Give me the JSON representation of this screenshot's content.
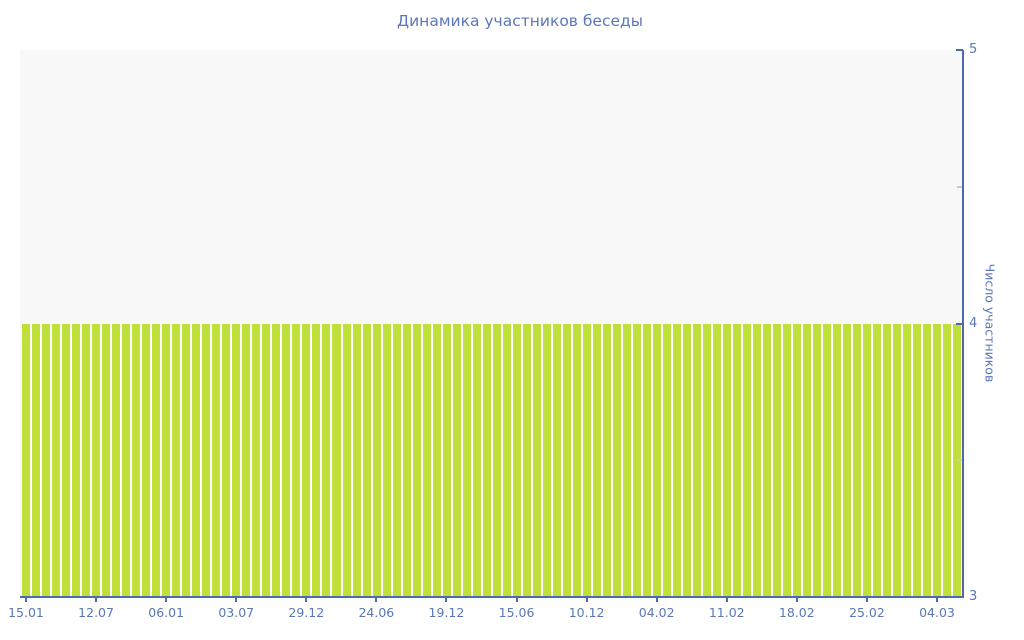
{
  "title": "Динамика участников беседы",
  "y_axis": {
    "title": "Число участников",
    "min": 3,
    "max": 5,
    "major_ticks": [
      {
        "label": "5",
        "value": 5
      },
      {
        "label": "4",
        "value": 4
      },
      {
        "label": "3",
        "value": 3
      }
    ],
    "minor_tick_values": [
      4.5,
      3.5
    ]
  },
  "x_axis": {
    "tick_labels": [
      "15.01",
      "12.07",
      "06.01",
      "03.07",
      "29.12",
      "24.06",
      "19.12",
      "15.06",
      "10.12",
      "04.02",
      "11.02",
      "18.02",
      "25.02",
      "04.03"
    ],
    "label_every_n_bars": 7
  },
  "colors": {
    "bar": "#bfdf3a",
    "bar_border": "#ffffff",
    "axis_line": "#4d6aac",
    "text": "#5b77b8",
    "plot_background": "#f8f8f8",
    "minor_tick": "#c9c9c9",
    "page_background": "#ffffff"
  },
  "chart_data": {
    "type": "bar",
    "title": "Динамика участников беседы",
    "xlabel": "",
    "ylabel": "Число участников",
    "ylim": [
      3,
      5
    ],
    "y_ticks": [
      5,
      4,
      3
    ],
    "y_minor_ticks": [
      4.5,
      3.5
    ],
    "grid": false,
    "legend": "none",
    "bar_count": 94,
    "categories": [
      "15.01",
      "12.07",
      "06.01",
      "03.07",
      "29.12",
      "24.06",
      "19.12",
      "15.06",
      "10.12",
      "04.02",
      "11.02",
      "18.02",
      "25.02",
      "04.03"
    ],
    "category_bar_indices": [
      0,
      7,
      14,
      21,
      28,
      35,
      42,
      49,
      56,
      63,
      70,
      77,
      84,
      91
    ],
    "values": [
      4,
      4,
      4,
      4,
      4,
      4,
      4,
      4,
      4,
      4,
      4,
      4,
      4,
      4,
      4,
      4,
      4,
      4,
      4,
      4,
      4,
      4,
      4,
      4,
      4,
      4,
      4,
      4,
      4,
      4,
      4,
      4,
      4,
      4,
      4,
      4,
      4,
      4,
      4,
      4,
      4,
      4,
      4,
      4,
      4,
      4,
      4,
      4,
      4,
      4,
      4,
      4,
      4,
      4,
      4,
      4,
      4,
      4,
      4,
      4,
      4,
      4,
      4,
      4,
      4,
      4,
      4,
      4,
      4,
      4,
      4,
      4,
      4,
      4,
      4,
      4,
      4,
      4,
      4,
      4,
      4,
      4,
      4,
      4,
      4,
      4,
      4,
      4,
      4,
      4,
      4,
      4,
      4,
      4
    ]
  }
}
